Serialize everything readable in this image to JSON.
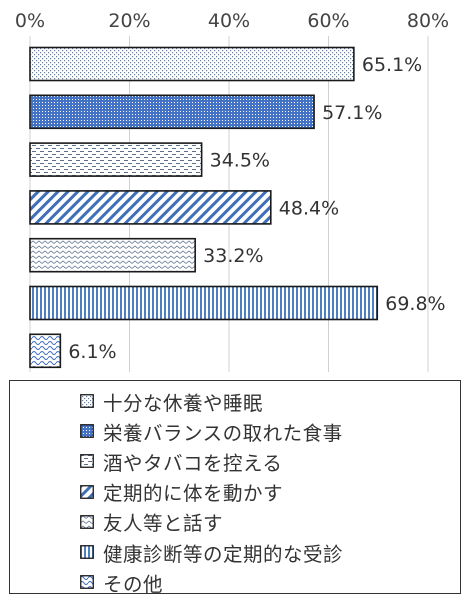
{
  "chart_data": {
    "type": "bar",
    "orientation": "horizontal",
    "x_ticks": [
      "0%",
      "20%",
      "40%",
      "60%",
      "80%"
    ],
    "xlim": [
      0,
      80
    ],
    "grid": true,
    "legend_placement": "bottom",
    "categories": [
      "十分な休養や睡眠",
      "栄養バランスの取れた食事",
      "酒やタバコを控える",
      "定期的に体を動かす",
      "友人等と話す",
      "健康診断等の定期的な受診",
      "その他"
    ],
    "values": [
      65.1,
      57.1,
      34.5,
      48.4,
      33.2,
      69.8,
      6.1
    ],
    "value_labels": [
      "65.1%",
      "57.1%",
      "34.5%",
      "48.4%",
      "33.2%",
      "69.8%",
      "6.1%"
    ],
    "patterns": [
      "dots-light",
      "dots-blue",
      "dashes",
      "diagonal-blue",
      "zigzag",
      "vertical-blue",
      "waves-blue"
    ],
    "colors": {
      "blue": "#4472c4",
      "outline": "#1a1a1a",
      "grid": "#d0d0d0"
    }
  }
}
